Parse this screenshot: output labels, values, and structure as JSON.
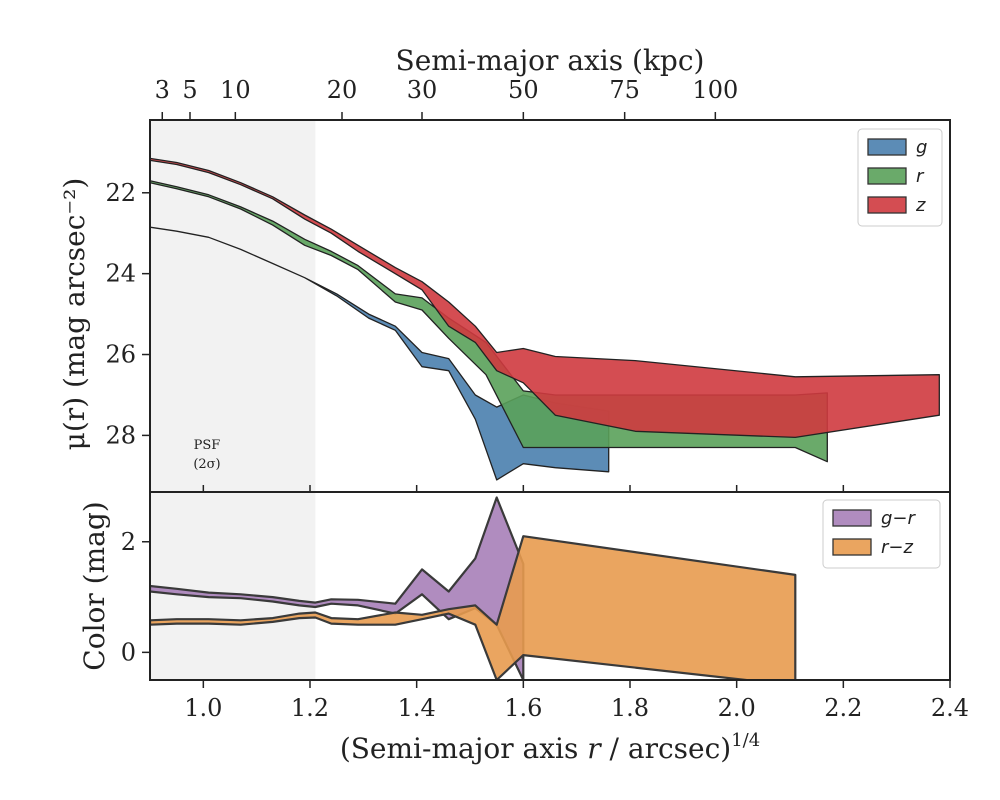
{
  "chart_data": [
    {
      "type": "area",
      "panel": "surface-brightness",
      "xlabel": "(Semi-major axis r / arcsec)^1/4",
      "ylabel": "μ(r) (mag arcsec⁻²)",
      "top_xlabel": "Semi-major axis (kpc)",
      "top_ticks": [
        3,
        5,
        10,
        20,
        30,
        50,
        75,
        100
      ],
      "top_ticks_at": [
        0.923,
        0.975,
        1.06,
        1.26,
        1.41,
        1.6,
        1.79,
        1.96
      ],
      "xlim": [
        0.9,
        2.4
      ],
      "ylim": [
        29.4,
        20.2
      ],
      "y_inverted": true,
      "yticks": [
        22,
        24,
        26,
        28
      ],
      "psf_shade": [
        0.9,
        1.21
      ],
      "psf_note": [
        "PSF",
        "(2σ)"
      ],
      "legend": "top-right",
      "series": [
        {
          "name": "g",
          "color": "#4a7fae",
          "x": [
            0.9,
            0.95,
            1.01,
            1.07,
            1.13,
            1.19,
            1.25,
            1.31,
            1.36,
            1.41,
            1.46,
            1.51,
            1.55,
            1.6,
            1.66,
            1.76
          ],
          "lo": [
            22.85,
            22.95,
            23.1,
            23.4,
            23.75,
            24.1,
            24.5,
            25.0,
            25.3,
            25.95,
            26.1,
            27.0,
            27.3,
            27.0,
            27.2,
            27.4
          ],
          "hi": [
            22.85,
            22.95,
            23.1,
            23.4,
            23.75,
            24.1,
            24.55,
            25.1,
            25.4,
            26.3,
            26.4,
            27.6,
            29.1,
            28.7,
            28.8,
            28.9
          ]
        },
        {
          "name": "r",
          "color": "#5aa15a",
          "x": [
            0.9,
            0.95,
            1.01,
            1.07,
            1.13,
            1.19,
            1.24,
            1.29,
            1.36,
            1.41,
            1.46,
            1.53,
            1.6,
            1.66,
            1.81,
            1.96,
            2.11,
            2.17
          ],
          "lo": [
            21.7,
            21.85,
            22.05,
            22.35,
            22.7,
            23.15,
            23.45,
            23.8,
            24.5,
            24.6,
            25.1,
            25.7,
            26.9,
            27.0,
            27.0,
            27.0,
            27.0,
            26.95
          ],
          "hi": [
            21.75,
            21.9,
            22.1,
            22.4,
            22.8,
            23.3,
            23.55,
            23.9,
            24.7,
            24.9,
            25.6,
            26.5,
            28.3,
            28.3,
            28.3,
            28.3,
            28.3,
            28.65
          ]
        },
        {
          "name": "z",
          "color": "#cf3a3f",
          "x": [
            0.9,
            0.95,
            1.01,
            1.07,
            1.13,
            1.19,
            1.24,
            1.29,
            1.36,
            1.41,
            1.46,
            1.51,
            1.55,
            1.6,
            1.66,
            1.81,
            2.11,
            2.38
          ],
          "lo": [
            21.15,
            21.25,
            21.45,
            21.75,
            22.1,
            22.55,
            22.9,
            23.3,
            23.85,
            24.2,
            24.7,
            25.3,
            25.95,
            25.85,
            26.05,
            26.15,
            26.55,
            26.5
          ],
          "hi": [
            21.2,
            21.3,
            21.5,
            21.8,
            22.15,
            22.65,
            23.0,
            23.45,
            24.0,
            24.4,
            25.3,
            25.7,
            26.4,
            26.7,
            27.5,
            27.9,
            28.05,
            27.5
          ]
        }
      ]
    },
    {
      "type": "area",
      "panel": "color",
      "xlabel": "(Semi-major axis r / arcsec)^1/4",
      "ylabel": "Color (mag)",
      "xlim": [
        0.9,
        2.4
      ],
      "ylim": [
        -0.5,
        2.9
      ],
      "yticks": [
        0,
        2
      ],
      "xticks": [
        1.0,
        1.2,
        1.4,
        1.6,
        1.8,
        2.0,
        2.2,
        2.4
      ],
      "psf_shade": [
        0.9,
        1.21
      ],
      "legend": "top-right",
      "series": [
        {
          "name": "g−r",
          "color": "#a77fb8",
          "x": [
            0.9,
            0.95,
            1.01,
            1.07,
            1.13,
            1.18,
            1.21,
            1.24,
            1.29,
            1.36,
            1.41,
            1.46,
            1.51,
            1.55,
            1.6
          ],
          "lo": [
            1.1,
            1.05,
            1.0,
            0.98,
            0.92,
            0.85,
            0.82,
            0.88,
            0.85,
            0.7,
            1.05,
            0.6,
            0.8,
            0.5,
            -0.5
          ],
          "hi": [
            1.2,
            1.15,
            1.08,
            1.05,
            1.0,
            0.93,
            0.9,
            0.96,
            0.95,
            0.88,
            1.5,
            1.1,
            1.7,
            2.8,
            1.6
          ]
        },
        {
          "name": "r−z",
          "color": "#e89b4f",
          "x": [
            0.9,
            0.95,
            1.01,
            1.07,
            1.13,
            1.18,
            1.21,
            1.24,
            1.29,
            1.36,
            1.41,
            1.46,
            1.51,
            1.55,
            1.6,
            2.11
          ],
          "lo": [
            0.5,
            0.52,
            0.52,
            0.5,
            0.55,
            0.62,
            0.63,
            0.52,
            0.5,
            0.5,
            0.6,
            0.7,
            0.5,
            -0.5,
            -0.05,
            -0.6
          ],
          "hi": [
            0.58,
            0.6,
            0.6,
            0.58,
            0.62,
            0.7,
            0.72,
            0.62,
            0.6,
            0.72,
            0.68,
            0.78,
            0.85,
            0.5,
            2.1,
            1.4
          ]
        }
      ]
    }
  ]
}
